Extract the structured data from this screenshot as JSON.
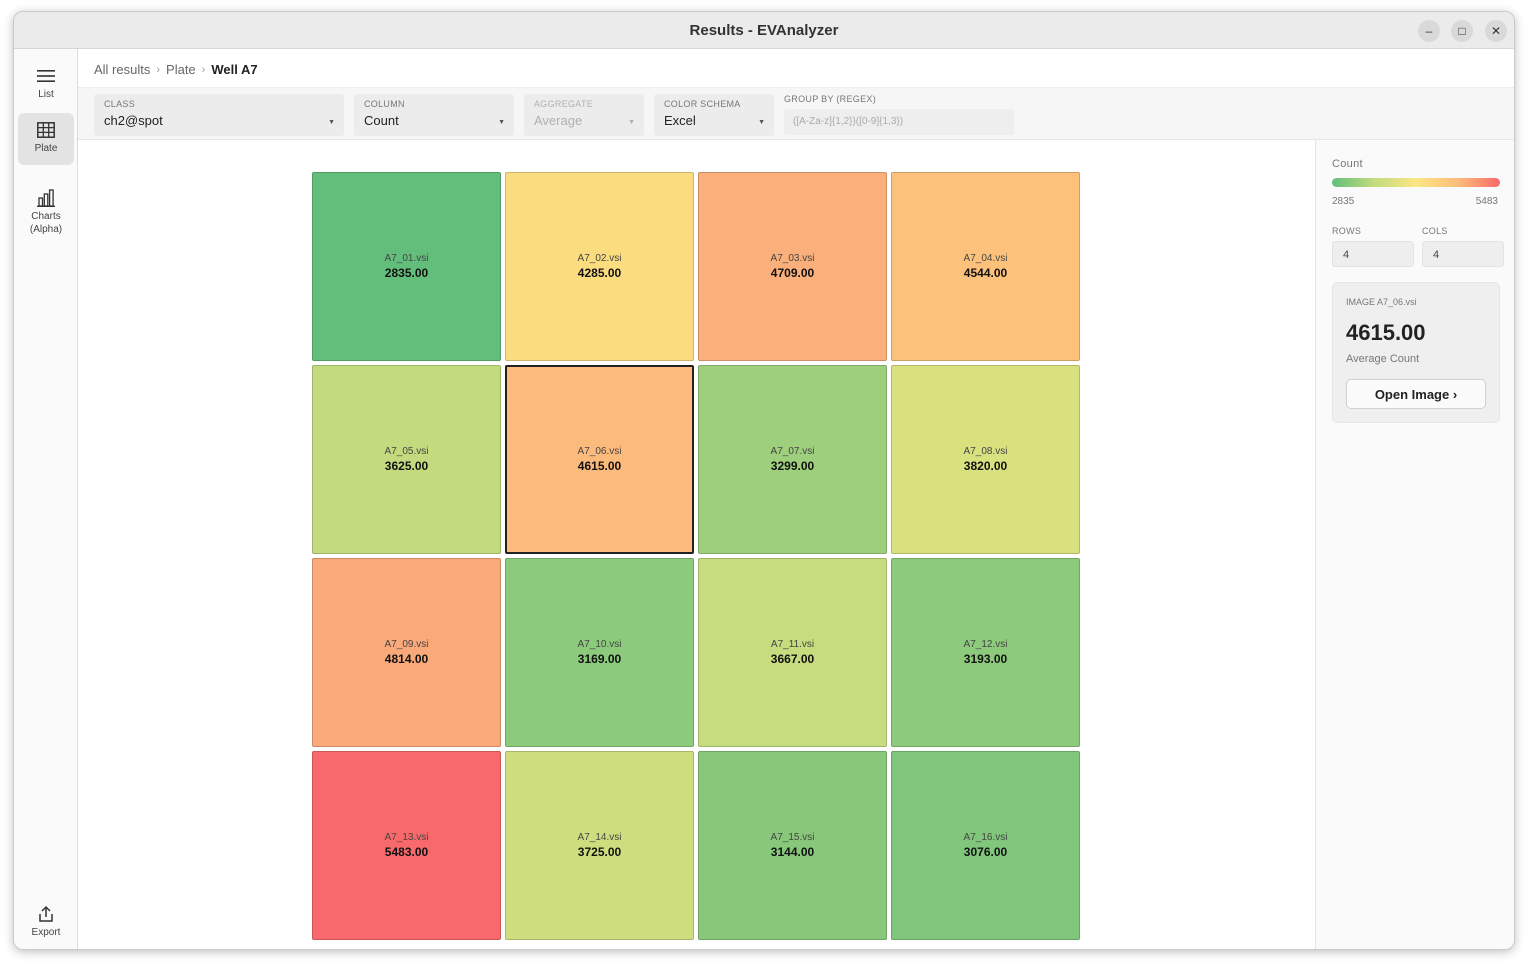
{
  "window": {
    "title": "Results - EVAnalyzer",
    "controls": {
      "minimize": "–",
      "maximize": "□",
      "close": "✕"
    }
  },
  "sidebar": {
    "items": [
      {
        "label": "List",
        "icon": "menu-icon"
      },
      {
        "label": "Plate",
        "icon": "grid-icon",
        "active": true
      },
      {
        "label": "Charts\n(Alpha)",
        "icon": "bar-chart-icon"
      }
    ],
    "export": {
      "label": "Export",
      "icon": "export-icon"
    }
  },
  "breadcrumb": {
    "items": [
      "All results",
      "Plate"
    ],
    "current": "Well A7",
    "separator": "›"
  },
  "toolbar": {
    "class": {
      "label": "CLASS",
      "value": "ch2@spot"
    },
    "column": {
      "label": "COLUMN",
      "value": "Count"
    },
    "aggregate": {
      "label": "AGGREGATE",
      "value": "Average",
      "disabled": true
    },
    "color_schema": {
      "label": "COLOR SCHEMA",
      "value": "Excel"
    },
    "group_by": {
      "label": "GROUP BY (REGEX)",
      "placeholder": "([A-Za-z]{1,2})([0-9]{1,3})"
    },
    "arrow": "▼"
  },
  "plate": {
    "rows": 4,
    "cols": 4,
    "selected": "A7_06.vsi",
    "cells": [
      {
        "name": "A7_01.vsi",
        "value": "2835.00",
        "color": "#63be7b"
      },
      {
        "name": "A7_02.vsi",
        "value": "4285.00",
        "color": "#fbdd80"
      },
      {
        "name": "A7_03.vsi",
        "value": "4709.00",
        "color": "#fbb07b"
      },
      {
        "name": "A7_04.vsi",
        "value": "4544.00",
        "color": "#fcc27c"
      },
      {
        "name": "A7_05.vsi",
        "value": "3625.00",
        "color": "#c3db7e"
      },
      {
        "name": "A7_06.vsi",
        "value": "4615.00",
        "color": "#fcba7c"
      },
      {
        "name": "A7_07.vsi",
        "value": "3299.00",
        "color": "#9dcf7c"
      },
      {
        "name": "A7_08.vsi",
        "value": "3820.00",
        "color": "#d9e17f"
      },
      {
        "name": "A7_09.vsi",
        "value": "4814.00",
        "color": "#faa97a"
      },
      {
        "name": "A7_10.vsi",
        "value": "3169.00",
        "color": "#8cca7c"
      },
      {
        "name": "A7_11.vsi",
        "value": "3667.00",
        "color": "#c6dc7e"
      },
      {
        "name": "A7_12.vsi",
        "value": "3193.00",
        "color": "#8dca7c"
      },
      {
        "name": "A7_13.vsi",
        "value": "5483.00",
        "color": "#f8696b"
      },
      {
        "name": "A7_14.vsi",
        "value": "3725.00",
        "color": "#cede7e"
      },
      {
        "name": "A7_15.vsi",
        "value": "3144.00",
        "color": "#88c87b"
      },
      {
        "name": "A7_16.vsi",
        "value": "3076.00",
        "color": "#80c67b"
      }
    ]
  },
  "panel": {
    "legend_title": "Count",
    "min": "2835",
    "max": "5483",
    "rows_label": "ROWS",
    "rows_value": "4",
    "cols_label": "COLS",
    "cols_value": "4",
    "image_label": "IMAGE A7_06.vsi",
    "image_value": "4615.00",
    "image_sub": "Average Count",
    "open_button": "Open Image ›",
    "gradient": [
      "#63be7b",
      "#c3db7e",
      "#fbe683",
      "#fcbd7b",
      "#f8696b"
    ]
  }
}
